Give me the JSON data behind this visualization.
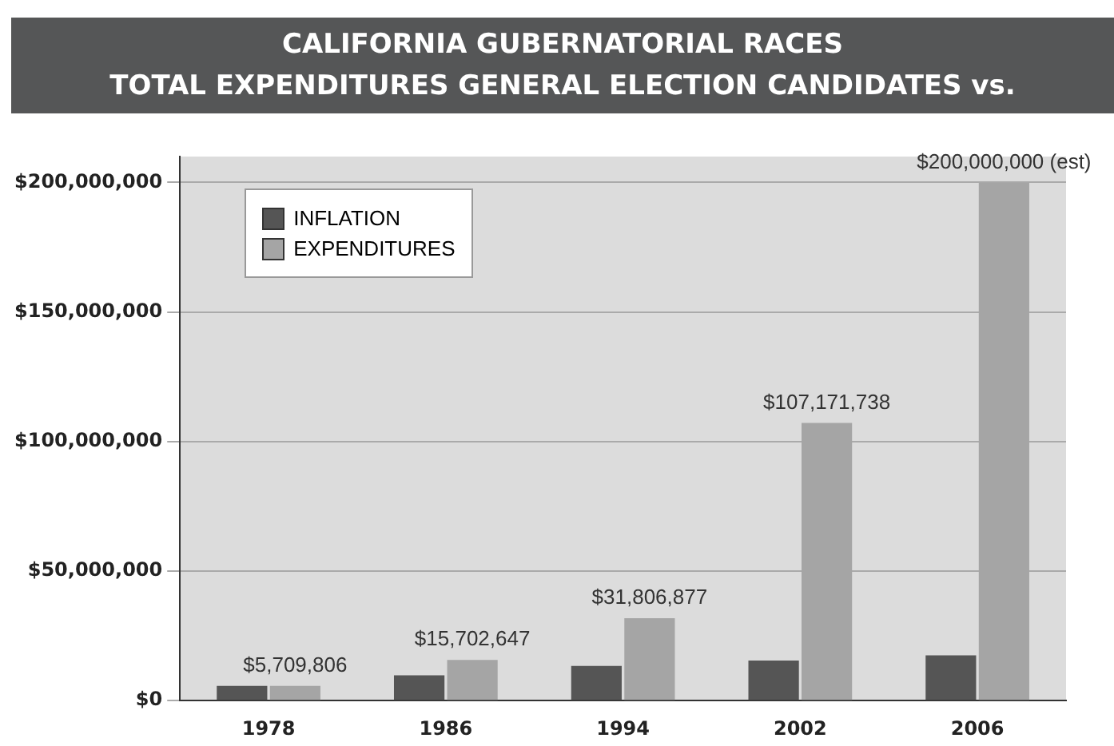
{
  "chart_data": {
    "type": "bar",
    "title": "CALIFORNIA GUBERNATORIAL RACES",
    "subtitle": "TOTAL EXPENDITURES GENERAL ELECTION CANDIDATES vs.",
    "categories": [
      "1978",
      "1986",
      "1994",
      "2002",
      "2006"
    ],
    "series": [
      {
        "name": "INFLATION",
        "color": "#555555",
        "values": [
          5700000,
          9800000,
          13400000,
          15500000,
          17500000
        ]
      },
      {
        "name": "EXPENDITURES",
        "color": "#a5a5a5",
        "values": [
          5709806,
          15702647,
          31806877,
          107171738,
          200000000
        ],
        "value_labels": [
          "$5,709,806",
          "$15,702,647",
          "$31,806,877",
          "$107,171,738",
          "$200,000,000 (est)"
        ]
      }
    ],
    "ylim": [
      0,
      210000000
    ],
    "yticks": [
      {
        "value": 0,
        "label": "$0"
      },
      {
        "value": 50000000,
        "label": "$50,000,000"
      },
      {
        "value": 100000000,
        "label": "$100,000,000"
      },
      {
        "value": 150000000,
        "label": "$150,000,000"
      },
      {
        "value": 200000000,
        "label": "$200,000,000"
      }
    ],
    "grid": "y",
    "legend": "top left"
  }
}
